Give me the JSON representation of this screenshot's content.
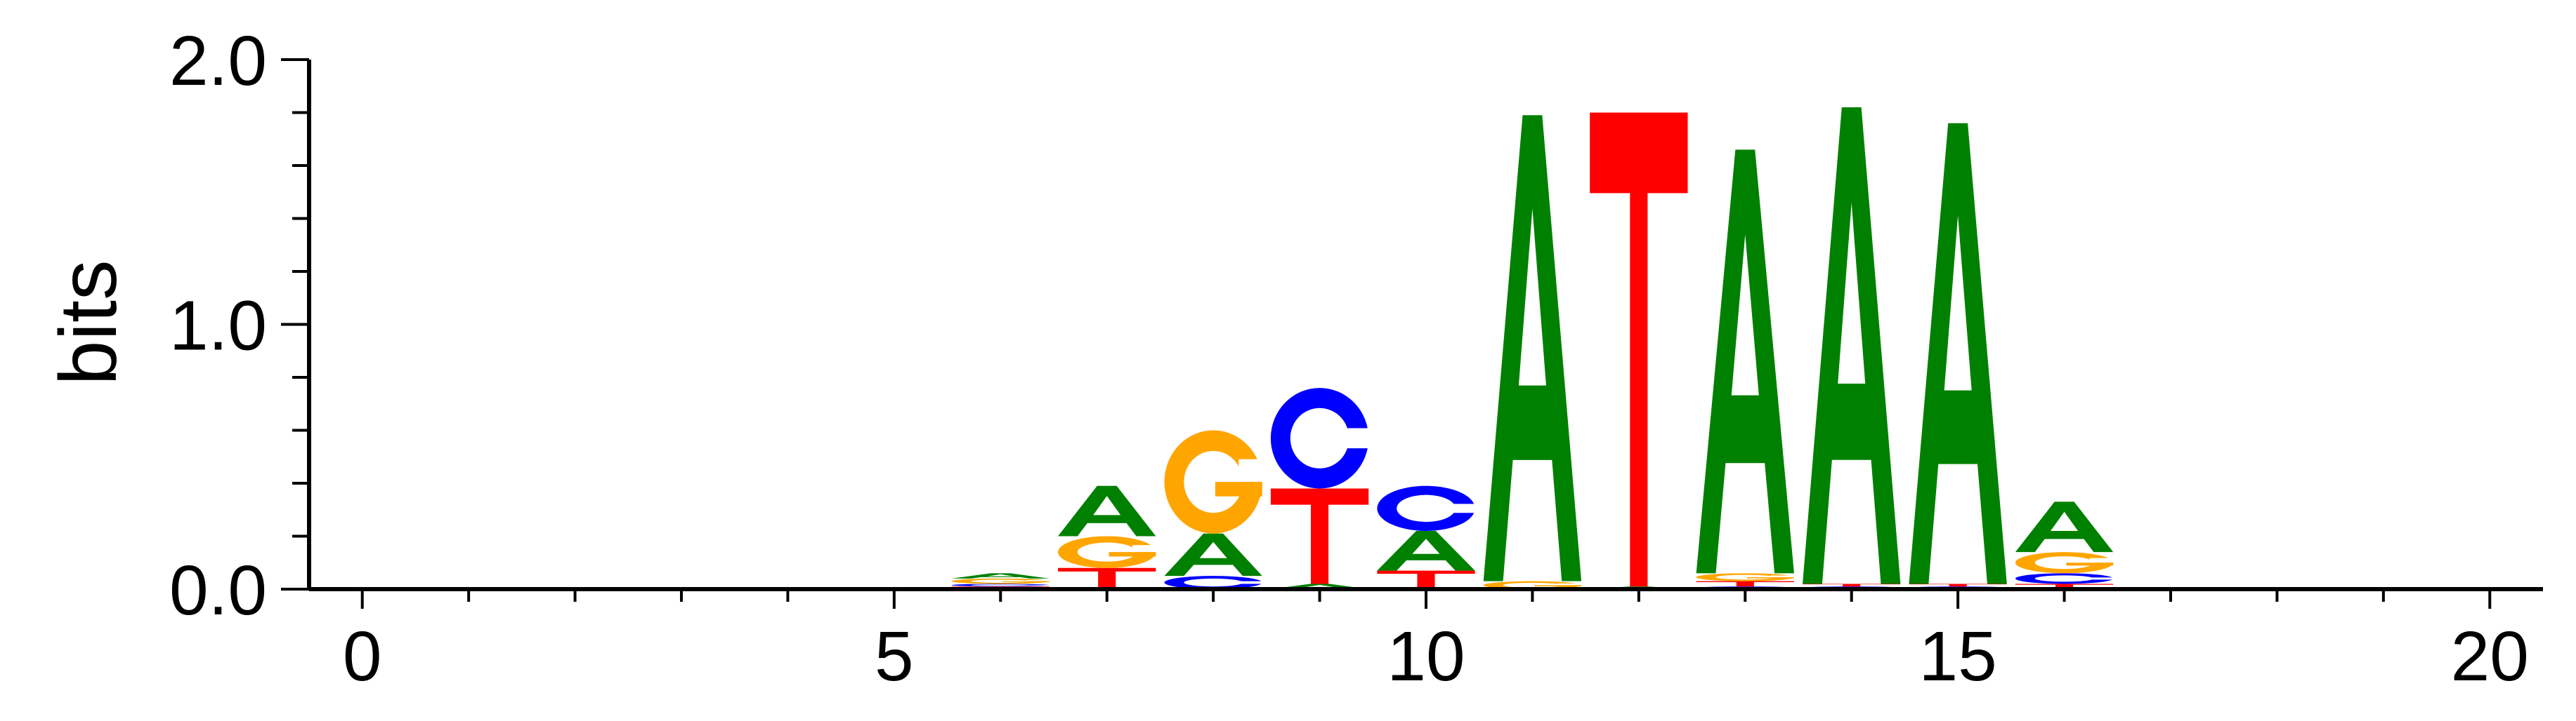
{
  "colors": {
    "A": "#008000",
    "C": "#0000ff",
    "G": "#ffa500",
    "T": "#ff0000",
    "axis": "#000000"
  },
  "chart_data": {
    "type": "sequence-logo",
    "ylabel": "bits",
    "xlim": [
      -0.5,
      20.5
    ],
    "ylim": [
      0,
      2
    ],
    "x_ticks": [
      0,
      5,
      10,
      15,
      20
    ],
    "x_tick_labels": [
      "0",
      "5",
      "10",
      "15",
      "20"
    ],
    "y_ticks": [
      0,
      1,
      2
    ],
    "y_tick_labels": [
      "0.0",
      "1.0",
      "2.0"
    ],
    "positions": [
      {
        "pos": 6,
        "letters": [
          {
            "base": "T",
            "h": 0.01
          },
          {
            "base": "C",
            "h": 0.01
          },
          {
            "base": "G",
            "h": 0.02
          },
          {
            "base": "A",
            "h": 0.02
          }
        ]
      },
      {
        "pos": 7,
        "letters": [
          {
            "base": "T",
            "h": 0.08
          },
          {
            "base": "G",
            "h": 0.12
          },
          {
            "base": "A",
            "h": 0.19
          }
        ]
      },
      {
        "pos": 8,
        "letters": [
          {
            "base": "C",
            "h": 0.05
          },
          {
            "base": "A",
            "h": 0.16
          },
          {
            "base": "G",
            "h": 0.39
          }
        ]
      },
      {
        "pos": 9,
        "letters": [
          {
            "base": "A",
            "h": 0.02
          },
          {
            "base": "T",
            "h": 0.36
          },
          {
            "base": "C",
            "h": 0.38
          }
        ]
      },
      {
        "pos": 10,
        "letters": [
          {
            "base": "T",
            "h": 0.07
          },
          {
            "base": "A",
            "h": 0.15
          },
          {
            "base": "C",
            "h": 0.17
          }
        ]
      },
      {
        "pos": 11,
        "letters": [
          {
            "base": "G",
            "h": 0.03
          },
          {
            "base": "A",
            "h": 1.76
          }
        ]
      },
      {
        "pos": 12,
        "letters": [
          {
            "base": "A",
            "h": 0.01
          },
          {
            "base": "T",
            "h": 1.79
          }
        ]
      },
      {
        "pos": 13,
        "letters": [
          {
            "base": "C",
            "h": 0.01
          },
          {
            "base": "T",
            "h": 0.02
          },
          {
            "base": "G",
            "h": 0.03
          },
          {
            "base": "A",
            "h": 1.6
          }
        ]
      },
      {
        "pos": 14,
        "letters": [
          {
            "base": "C",
            "h": 0.01
          },
          {
            "base": "T",
            "h": 0.01
          },
          {
            "base": "A",
            "h": 1.8
          }
        ]
      },
      {
        "pos": 15,
        "letters": [
          {
            "base": "C",
            "h": 0.01
          },
          {
            "base": "T",
            "h": 0.01
          },
          {
            "base": "A",
            "h": 1.74
          }
        ]
      },
      {
        "pos": 16,
        "letters": [
          {
            "base": "T",
            "h": 0.02
          },
          {
            "base": "C",
            "h": 0.04
          },
          {
            "base": "G",
            "h": 0.08
          },
          {
            "base": "A",
            "h": 0.19
          }
        ]
      }
    ]
  }
}
